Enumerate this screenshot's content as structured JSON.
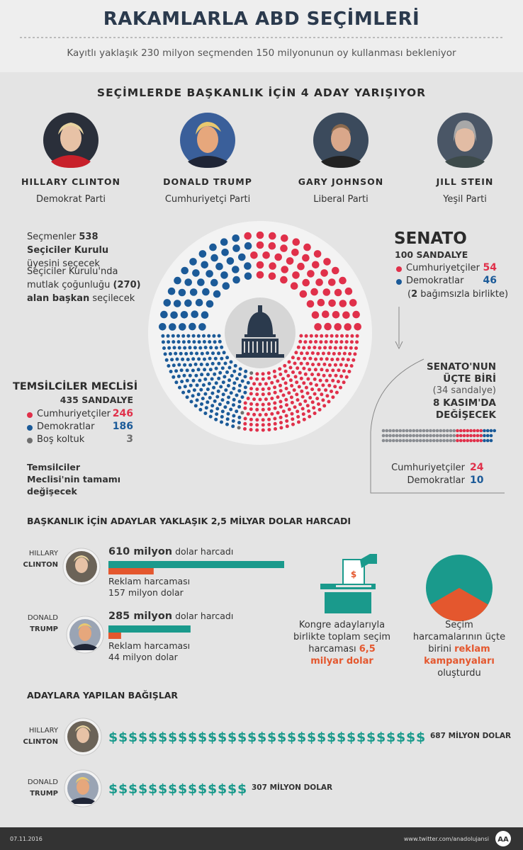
{
  "header": {
    "title": "RAKAMLARLA ABD SEÇİMLERİ",
    "subtitle": "Kayıtlı yaklaşık 230 milyon seçmenden 150 milyonunun oy kullanması bekleniyor"
  },
  "candidates": {
    "title": "SEÇİMLERDE BAŞKANLIK İÇİN 4 ADAY YARIŞIYOR",
    "items": [
      {
        "name": "HILLARY CLINTON",
        "party": "Demokrat Parti"
      },
      {
        "name": "DONALD TRUMP",
        "party": "Cumhuriyetçi Parti"
      },
      {
        "name": "GARY JOHNSON",
        "party": "Liberal Parti"
      },
      {
        "name": "JILL STEIN",
        "party": "Yeşil Parti"
      }
    ]
  },
  "electoral": {
    "line1": [
      "Seçmenler ",
      "538 Seçiciler Kurulu",
      " üyesini seçecek"
    ],
    "line2": [
      "Seçiciler Kurulu'nda mutlak çoğunluğu ",
      "(270) alan başkan",
      " seçilecek"
    ]
  },
  "senate": {
    "title": "SENATO",
    "seats": {
      "value": 100,
      "label": "100 SANDALYE"
    },
    "parties": [
      {
        "name": "Cumhuriyetçiler",
        "seats": 54,
        "color": "#e0304a"
      },
      {
        "name": "Demokratlar",
        "seats": 46,
        "color": "#1b5a98"
      }
    ],
    "note": [
      "(",
      "2",
      " bağımsızla birlikte)"
    ]
  },
  "house": {
    "title": "TEMSİLCİLER MECLİSİ",
    "seats": {
      "value": 435,
      "label": "435 SANDALYE"
    },
    "parties": [
      {
        "name": "Cumhuriyetçiler",
        "seats": 246,
        "color": "#e0304a"
      },
      {
        "name": "Demokratlar",
        "seats": 186,
        "color": "#1b5a98"
      },
      {
        "name": "Boş koltuk",
        "seats": 3,
        "color": "#6e6e6e"
      }
    ],
    "note": "Temsilciler Meclisi'nin tamamı değişecek"
  },
  "senate_change": {
    "title_lines": [
      "SENATO'NUN",
      "ÜÇTE BİRİ"
    ],
    "seats": "(34 sandalye)",
    "date_lines": [
      "8 KASIM'DA",
      "DEĞİŞECEK"
    ],
    "rest_color": "#8a8d92",
    "parties": [
      {
        "name": "Cumhuriyetçiler",
        "seats": 24,
        "color": "#e0304a"
      },
      {
        "name": "Demokratlar",
        "seats": 10,
        "color": "#1b5a98"
      }
    ]
  },
  "spending": {
    "title": "BAŞKANLIK İÇİN ADAYLAR YAKLAŞIK 2,5 MİLYAR DOLAR HARCADI",
    "total_color": "#1a9a8c",
    "ad_color": "#e4572e",
    "candidates": [
      {
        "first": "HILLARY",
        "last": "CLINTON",
        "total": {
          "value": 610,
          "label": "610 milyon"
        },
        "total_suffix": " dolar harcadı",
        "ad_label": "Reklam harcaması",
        "ad": {
          "value": 157,
          "label": "157 milyon dolar"
        }
      },
      {
        "first": "DONALD",
        "last": "TRUMP",
        "total": {
          "value": 285,
          "label": "285 milyon"
        },
        "total_suffix": " dolar harcadı",
        "ad_label": "Reklam harcaması",
        "ad": {
          "value": 44,
          "label": "44 milyon dolar"
        }
      }
    ],
    "congress": [
      "Kongre adaylarıyla birlikte toplam seçim harcaması ",
      "6,5 milyar dolar"
    ],
    "ads": [
      "Seçim harcamalarının üçte birini ",
      "reklam kampanyaları",
      " oluşturdu"
    ]
  },
  "donations": {
    "title": "ADAYLARA YAPILAN BAĞIŞLAR",
    "symbol": "$",
    "color": "#1a9a8c",
    "candidates": [
      {
        "first": "HILLARY",
        "last": "CLINTON",
        "amount": {
          "value": 687,
          "label": "687 MİLYON DOLAR"
        }
      },
      {
        "first": "DONALD",
        "last": "TRUMP",
        "amount": {
          "value": 307,
          "label": "307 MİLYON DOLAR"
        }
      }
    ]
  },
  "footer": {
    "date": "07.11.2016",
    "url": "www.twitter.com/anadolujansi",
    "logo": "AA"
  }
}
